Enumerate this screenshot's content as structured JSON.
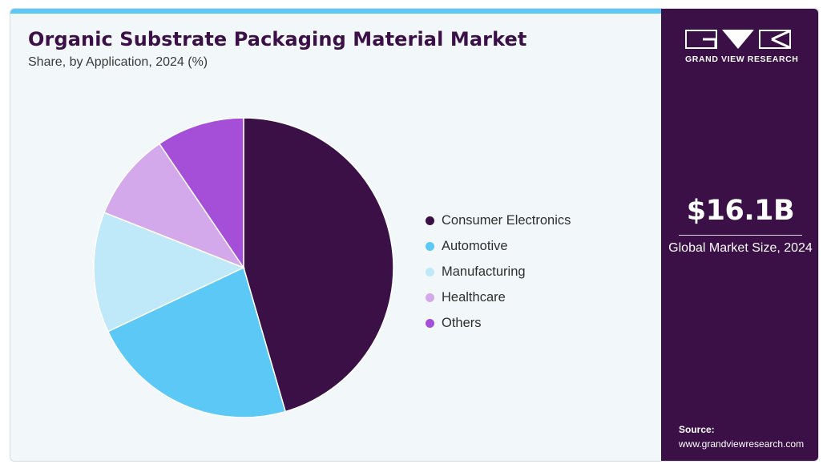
{
  "chart_data": {
    "type": "pie",
    "title": "Organic Substrate Packaging Material Market",
    "subtitle": "Share, by Application, 2024 (%)",
    "categories": [
      "Consumer Electronics",
      "Automotive",
      "Manufacturing",
      "Healthcare",
      "Others"
    ],
    "values": [
      45.5,
      22.5,
      13,
      9.5,
      9.5
    ],
    "colors": [
      "#3a1046",
      "#5bc8f5",
      "#bfe8f8",
      "#d4a9ec",
      "#a54fd8"
    ],
    "legend_position": "right"
  },
  "sidebar": {
    "brand": "GRAND VIEW RESEARCH",
    "market_size": "$16.1B",
    "market_size_label": "Global Market Size, 2024",
    "source_label": "Source:",
    "source_url": "www.grandviewresearch.com"
  }
}
